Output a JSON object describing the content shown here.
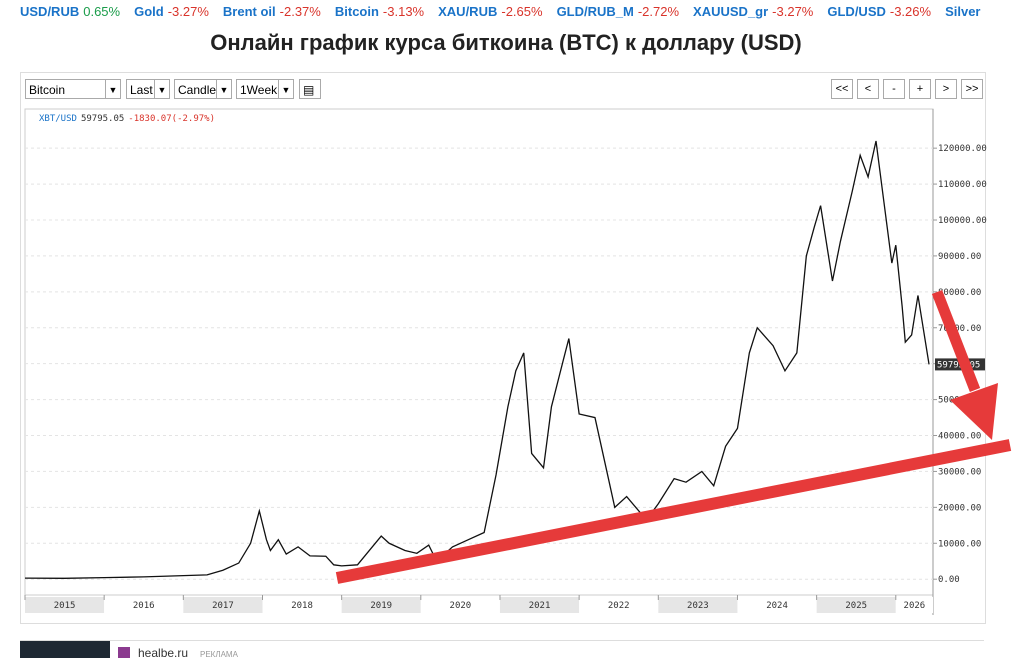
{
  "ticker": [
    {
      "name": "USD/RUB",
      "change": "0.65%"
    },
    {
      "name": "Gold",
      "change": "-3.27%"
    },
    {
      "name": "Brent oil",
      "change": "-2.37%"
    },
    {
      "name": "Bitcoin",
      "change": "-3.13%"
    },
    {
      "name": "XAU/RUB",
      "change": "-2.65%"
    },
    {
      "name": "GLD/RUB_M",
      "change": "-2.72%"
    },
    {
      "name": "XAUUSD_gr",
      "change": "-3.27%"
    },
    {
      "name": "GLD/USD",
      "change": "-3.26%"
    },
    {
      "name": "Silver"
    }
  ],
  "page_title": "Онлайн график курса биткоина (BTC) к доллару (USD)",
  "toolbar": {
    "instrument": "Bitcoin",
    "price_type": "Last",
    "chart_type": "Candle",
    "period": "1Week",
    "nav": [
      "<<",
      "<",
      "-",
      "+",
      ">",
      ">>"
    ]
  },
  "chart_data": {
    "type": "line",
    "symbol": "XBT/USD",
    "last": 59795.05,
    "change": "-1830.07(-2.97%)",
    "color": "#111111",
    "x": [
      2015.0,
      2015.5,
      2016.0,
      2016.5,
      2017.0,
      2017.3,
      2017.5,
      2017.7,
      2017.85,
      2017.96,
      2018.05,
      2018.1,
      2018.2,
      2018.3,
      2018.45,
      2018.6,
      2018.8,
      2018.9,
      2019.0,
      2019.2,
      2019.35,
      2019.5,
      2019.6,
      2019.8,
      2019.95,
      2020.1,
      2020.2,
      2020.4,
      2020.6,
      2020.8,
      2020.95,
      2021.1,
      2021.2,
      2021.3,
      2021.4,
      2021.55,
      2021.65,
      2021.8,
      2021.87,
      2022.0,
      2022.2,
      2022.35,
      2022.45,
      2022.6,
      2022.85,
      2023.0,
      2023.2,
      2023.35,
      2023.55,
      2023.7,
      2023.85,
      2024.0,
      2024.15,
      2024.25,
      2024.45,
      2024.6,
      2024.75,
      2024.87,
      2024.97,
      2025.05,
      2025.2,
      2025.3,
      2025.45,
      2025.55,
      2025.65,
      2025.75,
      2025.85,
      2025.95,
      2026.0,
      2026.08,
      2026.12,
      2026.2,
      2026.28,
      2026.42
    ],
    "values": [
      300,
      250,
      430,
      650,
      1000,
      1200,
      2500,
      4500,
      10000,
      19000,
      11000,
      8000,
      11000,
      7000,
      9000,
      6500,
      6400,
      4000,
      3700,
      4000,
      8000,
      12000,
      10000,
      8000,
      7200,
      9500,
      5000,
      9000,
      11000,
      13000,
      29000,
      48000,
      58000,
      63000,
      35000,
      31000,
      48000,
      61000,
      67000,
      46000,
      45000,
      30000,
      20000,
      23000,
      16500,
      21000,
      28000,
      27000,
      30000,
      26000,
      37000,
      42000,
      63000,
      70000,
      65000,
      58000,
      63000,
      90000,
      98000,
      104000,
      83000,
      94000,
      108000,
      118000,
      112000,
      122000,
      105000,
      88000,
      93000,
      76000,
      66000,
      68000,
      79000,
      59795.05
    ],
    "xlim": [
      2015.0,
      2026.47
    ],
    "ylim": [
      -4400,
      130900
    ],
    "xticks": [
      2015,
      2016,
      2017,
      2018,
      2019,
      2020,
      2021,
      2022,
      2023,
      2024,
      2025,
      2026
    ],
    "yticks": [
      {
        "value": 0,
        "label": "0.00"
      },
      {
        "value": 10000,
        "label": "10000.00"
      },
      {
        "value": 20000,
        "label": "20000.00"
      },
      {
        "value": 30000,
        "label": "30000.00"
      },
      {
        "value": 40000,
        "label": "40000.00"
      },
      {
        "value": 50000,
        "label": "50000.00"
      },
      {
        "value": 60000,
        "label": "60000.00"
      },
      {
        "value": 70000,
        "label": "70000.00"
      },
      {
        "value": 80000,
        "label": "80000.00"
      },
      {
        "value": 90000,
        "label": "90000.00"
      },
      {
        "value": 100000,
        "label": "100000.00"
      },
      {
        "value": 110000,
        "label": "110000.00"
      },
      {
        "value": 120000,
        "label": "120000.00"
      }
    ]
  },
  "ad": {
    "site": "healbe.ru",
    "label": "РЕКЛАМА"
  }
}
